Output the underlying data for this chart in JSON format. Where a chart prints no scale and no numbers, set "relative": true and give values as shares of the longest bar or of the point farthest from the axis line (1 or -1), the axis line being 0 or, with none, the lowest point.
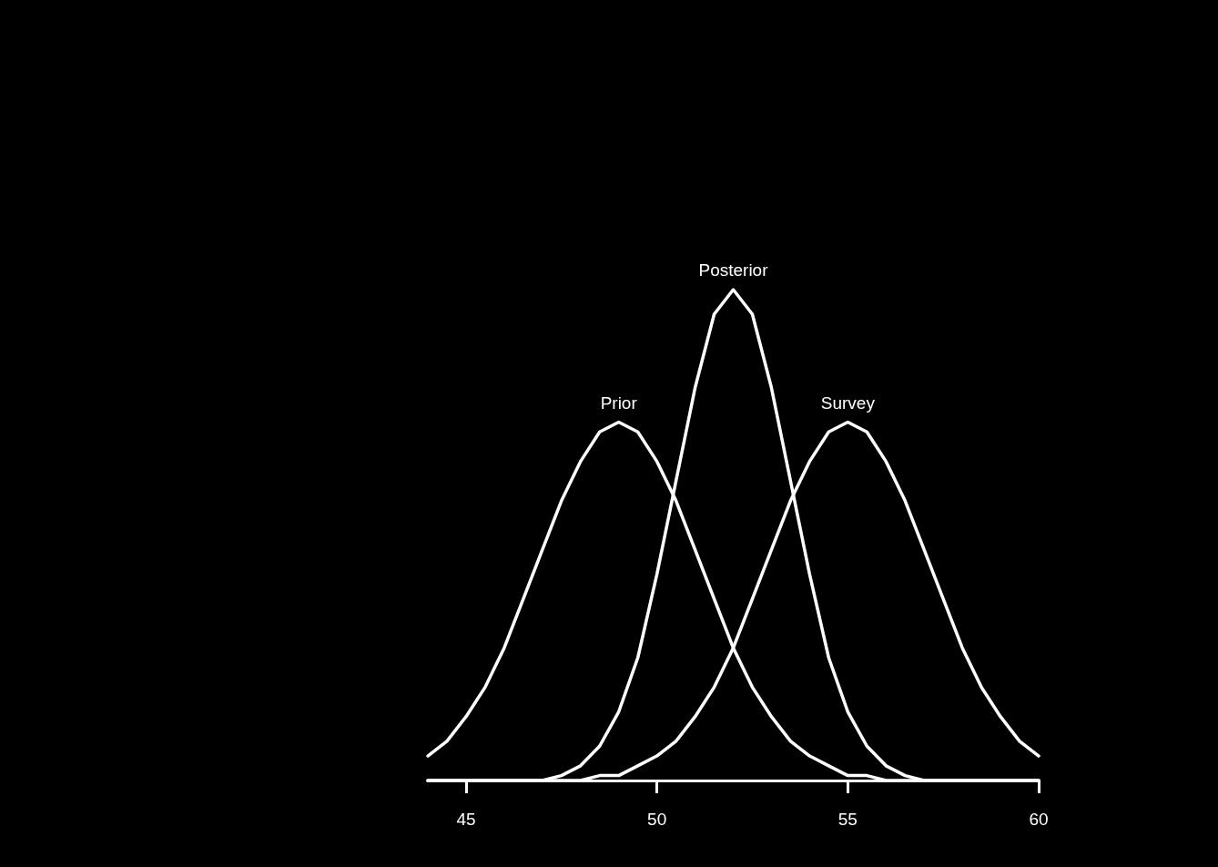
{
  "chart_data": {
    "type": "line",
    "relative": true,
    "marker": "none",
    "line_style": "solid",
    "grid": false,
    "legend": false,
    "tick_labels": "x",
    "x": [
      44,
      44.5,
      45,
      45.5,
      46,
      46.5,
      47,
      47.5,
      48,
      48.5,
      49,
      49.5,
      50,
      50.5,
      51,
      51.5,
      52,
      52.5,
      53,
      53.5,
      54,
      54.5,
      55,
      55.5,
      56,
      56.5,
      57,
      57.5,
      58,
      58.5,
      59,
      59.5,
      60
    ],
    "xlim": [
      44,
      60
    ],
    "xticks": [
      45,
      50,
      55,
      60
    ],
    "series": [
      {
        "name": "Prior",
        "color": "#ffffff",
        "values": [
          0.05,
          0.08,
          0.13,
          0.19,
          0.27,
          0.37,
          0.47,
          0.57,
          0.65,
          0.71,
          0.73,
          0.71,
          0.65,
          0.57,
          0.47,
          0.37,
          0.27,
          0.19,
          0.13,
          0.08,
          0.05,
          0.03,
          0.01,
          0.01,
          0,
          0,
          0,
          0,
          0,
          0,
          0,
          0,
          0
        ]
      },
      {
        "name": "Posterior",
        "color": "#ffffff",
        "values": [
          0,
          0,
          0,
          0,
          0,
          0,
          0,
          0.01,
          0.03,
          0.07,
          0.14,
          0.25,
          0.42,
          0.61,
          0.8,
          0.95,
          1,
          0.95,
          0.8,
          0.61,
          0.42,
          0.25,
          0.14,
          0.07,
          0.03,
          0.01,
          0,
          0,
          0,
          0,
          0,
          0,
          0
        ]
      },
      {
        "name": "Survey",
        "color": "#ffffff",
        "values": [
          0,
          0,
          0,
          0,
          0,
          0,
          0,
          0,
          0,
          0.01,
          0.01,
          0.03,
          0.05,
          0.08,
          0.13,
          0.19,
          0.27,
          0.37,
          0.47,
          0.57,
          0.65,
          0.71,
          0.73,
          0.71,
          0.65,
          0.57,
          0.47,
          0.37,
          0.27,
          0.19,
          0.13,
          0.08,
          0.05
        ]
      }
    ]
  }
}
